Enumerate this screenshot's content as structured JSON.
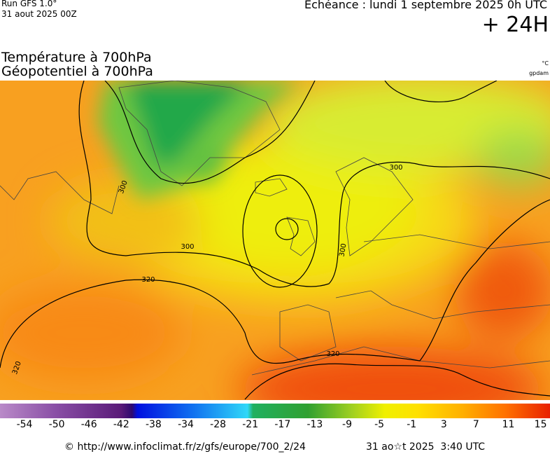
{
  "header": {
    "run": "Run GFS 1.0°",
    "date": "31 aout 2025 00Z",
    "echeance": "Echéance : lundi 1 septembre 2025 0h UTC",
    "lead": "+ 24H"
  },
  "titles": {
    "line1": "Température à 700hPa",
    "line2": "Géopotentiel à 700hPa",
    "unit1": "°C",
    "unit2": "gpdam"
  },
  "map": {
    "contour_labels": [
      300,
      300,
      300,
      300,
      320,
      320,
      320
    ]
  },
  "colorbar": {
    "labels": [
      -54,
      -50,
      -46,
      -42,
      -38,
      -34,
      -28,
      -21,
      -17,
      -13,
      -9,
      -5,
      -1,
      3,
      7,
      11,
      15
    ]
  },
  "footer": {
    "source": "© http://www.infoclimat.fr/z/gfs/europe/700_2/24",
    "created": "31 ao☆t 2025  3:40 UTC"
  }
}
